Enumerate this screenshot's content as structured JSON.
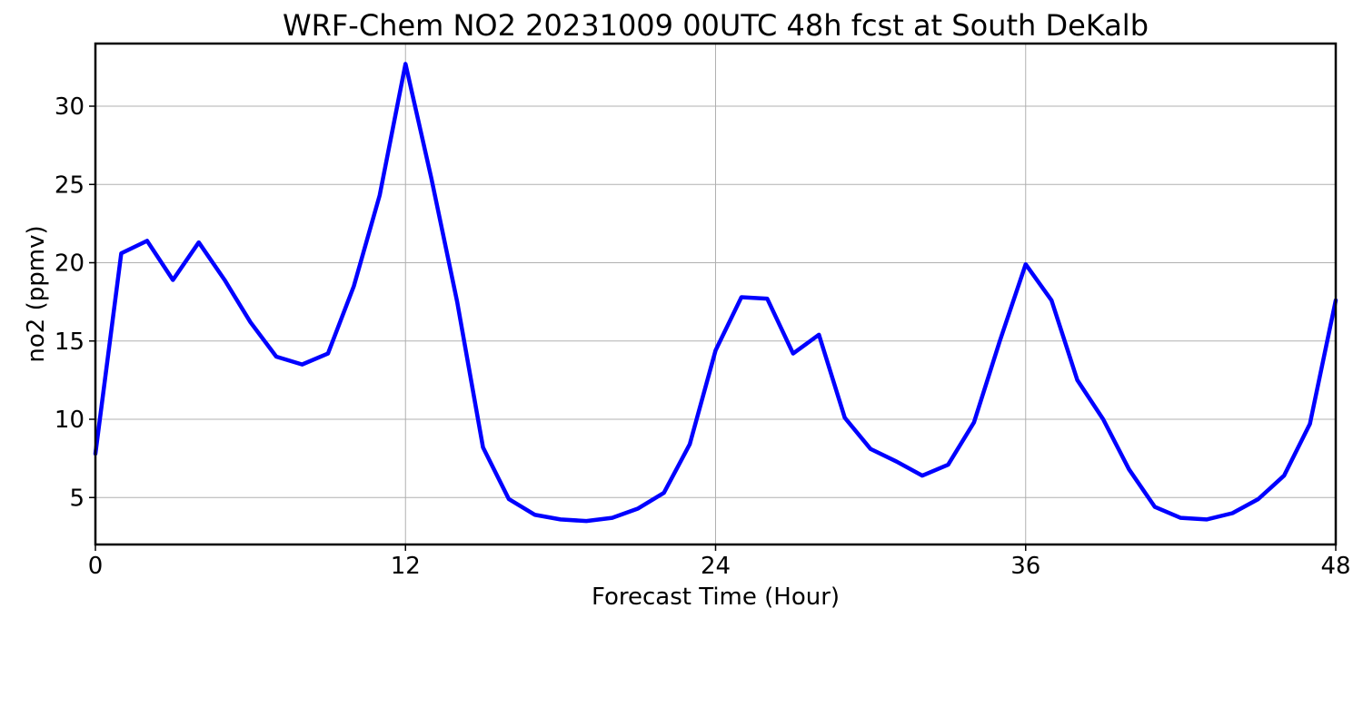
{
  "chart_data": {
    "type": "line",
    "title": "WRF-Chem NO2  20231009 00UTC 48h fcst at South DeKalb",
    "xlabel": "Forecast Time (Hour)",
    "ylabel": "no2  (ppmv)",
    "xlim": [
      0,
      48
    ],
    "ylim": [
      2,
      34
    ],
    "xticks": [
      0,
      12,
      24,
      36,
      48
    ],
    "yticks": [
      5,
      10,
      15,
      20,
      25,
      30
    ],
    "grid": true,
    "legend": "none",
    "series": [
      {
        "color": "#0000ff",
        "x": [
          0,
          1,
          2,
          3,
          4,
          5,
          6,
          7,
          8,
          9,
          10,
          11,
          12,
          13,
          14,
          15,
          16,
          17,
          18,
          19,
          20,
          21,
          22,
          23,
          24,
          25,
          26,
          27,
          28,
          29,
          30,
          31,
          32,
          33,
          34,
          35,
          36,
          37,
          38,
          39,
          40,
          41,
          42,
          43,
          44,
          45,
          46,
          47,
          48
        ],
        "values": [
          7.8,
          20.6,
          21.4,
          18.9,
          21.3,
          18.9,
          16.2,
          14.0,
          13.5,
          14.2,
          18.5,
          24.3,
          32.7,
          25.4,
          17.5,
          8.2,
          4.9,
          3.9,
          3.6,
          3.5,
          3.7,
          4.3,
          5.3,
          8.4,
          14.4,
          17.8,
          17.7,
          14.2,
          15.4,
          10.1,
          8.1,
          7.3,
          6.4,
          7.1,
          9.8,
          15.0,
          19.9,
          17.6,
          12.5,
          10.0,
          6.8,
          4.4,
          3.7,
          3.6,
          4.0,
          4.9,
          6.4,
          9.7,
          17.6
        ]
      }
    ]
  }
}
